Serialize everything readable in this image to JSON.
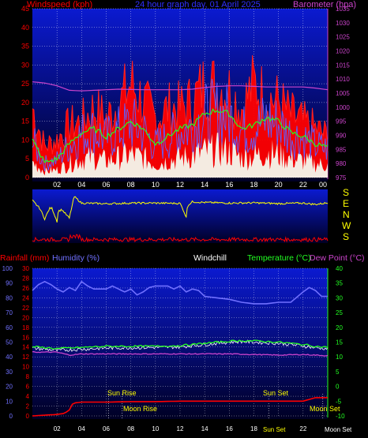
{
  "colors": {
    "background": "#000000",
    "panel_top": "#0b1ad0",
    "panel_bottom": "#000024",
    "grid": "#ffffff",
    "wind": "#ff0000",
    "gust_fill": "#ff0000",
    "wind_avg": "#22ff22",
    "baro": "#cc44cc",
    "direction": "#ffff00",
    "direction_speed": "#ff0000",
    "rain": "#ff0000",
    "humidity": "#7070ff",
    "temperature": "#22ff22",
    "dewpoint": "#cc44cc",
    "windchill": "#ffffff",
    "label_blue": "#3030ff",
    "label_yellow": "#ffff00"
  },
  "header": {
    "windspeed_label": "Windspeed (kph)",
    "graph_title": "24 hour graph day, 01 April 2025",
    "barometer_label": "Barometer (hpa)"
  },
  "bottom_header": {
    "rainfall_label": "Rainfall (mm)",
    "humidity_label": "Humidity (%)",
    "windchill_label": "Windchill",
    "temperature_label": "Temperature (°C)",
    "dewpoint_label": "Dew Point (°C)"
  },
  "compass": [
    "S",
    "E",
    "N",
    "W",
    "S"
  ],
  "astro": {
    "sunrise_label": "Sun Rise",
    "sunset_label": "Sun Set",
    "moonrise_label": "Moon Rise",
    "moonset_label": "Moon Set",
    "axis_sunrise": "Sun Rise",
    "axis_sunset": "Sun Set",
    "axis_moonrise": "Moon Rise",
    "axis_moonset": "Moon Set"
  },
  "chart_data": [
    {
      "type": "line",
      "title": "24 hour graph day, 01 April 2025",
      "ylabel": "Windspeed (kph)",
      "y2label": "Barometer (hpa)",
      "x_ticks": [
        "02",
        "04",
        "06",
        "08",
        "10",
        "12",
        "14",
        "16",
        "18",
        "20",
        "22",
        "00"
      ],
      "y_ticks": [
        0,
        5,
        10,
        15,
        20,
        25,
        30,
        35,
        40,
        45
      ],
      "y2_ticks": [
        975,
        980,
        985,
        990,
        995,
        1000,
        1005,
        1010,
        1015,
        1020,
        1025,
        1030,
        1035
      ],
      "ylim": [
        0,
        45
      ],
      "y2lim": [
        975,
        1035
      ],
      "series": [
        {
          "name": "Windspeed (kph)",
          "hours": [
            0,
            1,
            2,
            3,
            4,
            5,
            6,
            7,
            8,
            9,
            10,
            11,
            12,
            13,
            14,
            15,
            16,
            17,
            18,
            19,
            20,
            21,
            22,
            23,
            24
          ],
          "values": [
            20,
            9,
            11,
            15,
            16,
            20,
            17,
            21,
            27,
            22,
            17,
            20,
            20,
            22,
            27,
            26,
            25,
            20,
            27,
            23,
            22,
            18,
            16,
            14,
            12
          ]
        },
        {
          "name": "average",
          "hours": [
            0,
            1,
            2,
            3,
            4,
            5,
            6,
            7,
            8,
            9,
            10,
            11,
            12,
            13,
            14,
            15,
            16,
            17,
            18,
            19,
            20,
            21,
            22,
            23,
            24
          ],
          "values": [
            10,
            4,
            5,
            9,
            12,
            13,
            11,
            13,
            15,
            13,
            9,
            11,
            13,
            14,
            17,
            18,
            17,
            13,
            14,
            16,
            15,
            12,
            11,
            9,
            8
          ]
        },
        {
          "name": "Barometer (hpa)",
          "hours": [
            0,
            1,
            2,
            3,
            4,
            5,
            6,
            7,
            8,
            9,
            10,
            11,
            12,
            13,
            14,
            15,
            16,
            17,
            18,
            19,
            20,
            21,
            22,
            23,
            24
          ],
          "values": [
            1009,
            1008.6,
            1007.6,
            1006,
            1005.8,
            1006,
            1006.2,
            1006.4,
            1006.3,
            1006.2,
            1006.2,
            1006.2,
            1006.2,
            1006.4,
            1007,
            1007.4,
            1007.6,
            1007.6,
            1007.4,
            1007.2,
            1007.2,
            1007.2,
            1007.2,
            1006.8,
            1006.2
          ]
        }
      ]
    },
    {
      "type": "line",
      "title": "",
      "x_ticks": [],
      "series": [
        {
          "name": "direction",
          "hours": [
            0,
            0.6,
            1,
            1.4,
            1.6,
            2,
            2.1,
            2.4,
            3,
            3.4,
            4,
            6,
            8,
            10,
            12,
            12.3,
            12.5,
            12.6,
            13,
            14,
            16,
            18,
            20,
            22,
            23,
            24
          ],
          "values": [
            300,
            240,
            160,
            240,
            240,
            140,
            220,
            230,
            165,
            330,
            280,
            275,
            280,
            280,
            278,
            220,
            170,
            260,
            290,
            285,
            280,
            282,
            276,
            280,
            270,
            282
          ]
        }
      ]
    },
    {
      "type": "line",
      "ylabel": "Rainfall (mm)",
      "x_ticks": [
        "02",
        "04",
        "06",
        "08",
        "10",
        "12",
        "14",
        "16",
        "18",
        "20",
        "22",
        "00"
      ],
      "rain_ticks": [
        0,
        2,
        4,
        6,
        8,
        10,
        12,
        14,
        16,
        18,
        20,
        22,
        24,
        26,
        28,
        30
      ],
      "humidity_ticks": [
        0,
        10,
        20,
        30,
        40,
        50,
        60,
        70,
        80,
        90,
        100
      ],
      "temp_ticks": [
        -10,
        -5,
        0,
        5,
        10,
        15,
        20,
        25,
        30,
        35,
        40
      ],
      "rain_lim": [
        0,
        30
      ],
      "temp_lim": [
        -10,
        40
      ],
      "series": [
        {
          "name": "Humidity (%)",
          "hours": [
            0,
            0.5,
            1,
            1.5,
            2,
            2.5,
            3,
            3.5,
            4,
            4.5,
            5,
            6,
            6.5,
            7,
            7.5,
            8,
            8.5,
            9,
            9.5,
            10,
            11,
            11.5,
            12,
            12.5,
            13,
            13.5,
            14,
            15,
            16,
            17,
            18,
            19,
            20,
            21,
            22,
            22.5,
            23,
            23.5,
            24
          ],
          "values": [
            85,
            89,
            91,
            89,
            86,
            84,
            87,
            85,
            91,
            88,
            86,
            86,
            88,
            86,
            84,
            86,
            82,
            84,
            87,
            88,
            88,
            86,
            88,
            84,
            86,
            85,
            81,
            80,
            79,
            77,
            76,
            76,
            77,
            77,
            84,
            87,
            85,
            81,
            81
          ]
        },
        {
          "name": "Temperature (°C)",
          "hours": [
            0,
            2,
            4,
            6,
            8,
            10,
            12,
            14,
            16,
            17,
            18,
            20,
            21,
            22,
            23,
            24
          ],
          "values": [
            13.5,
            12.8,
            13.2,
            13.6,
            13.6,
            13.6,
            13.8,
            14.6,
            15.3,
            15.5,
            15.4,
            15,
            14.6,
            14.2,
            13.6,
            13.2
          ]
        },
        {
          "name": "Windchill",
          "hours": [
            0,
            2,
            4,
            6,
            8,
            10,
            12,
            14,
            16,
            17,
            18,
            20,
            21,
            22,
            23,
            24
          ],
          "values": [
            13,
            12.2,
            12.6,
            13,
            13.1,
            13.2,
            13.4,
            14.2,
            15,
            15.2,
            15,
            14.6,
            14.2,
            13.7,
            13.1,
            12.8
          ]
        },
        {
          "name": "Dew Point (°C)",
          "hours": [
            0,
            2,
            3,
            4,
            6,
            8,
            10,
            12,
            14,
            16,
            18,
            20,
            22,
            24
          ],
          "values": [
            11.6,
            11.6,
            10.6,
            11,
            11,
            11,
            11,
            11,
            11,
            11,
            10.8,
            10.6,
            10.8,
            10.4
          ]
        },
        {
          "name": "Rainfall (mm)",
          "hours": [
            0,
            2,
            2.6,
            3,
            3.3,
            4,
            5,
            6,
            8,
            10,
            12,
            14,
            16,
            18,
            20,
            22,
            23,
            24
          ],
          "values": [
            0,
            0.3,
            0.5,
            1.2,
            2.6,
            2.8,
            2.8,
            2.8,
            2.9,
            2.9,
            3,
            3,
            3,
            3,
            3,
            3,
            3.7,
            3.7
          ]
        }
      ]
    }
  ]
}
